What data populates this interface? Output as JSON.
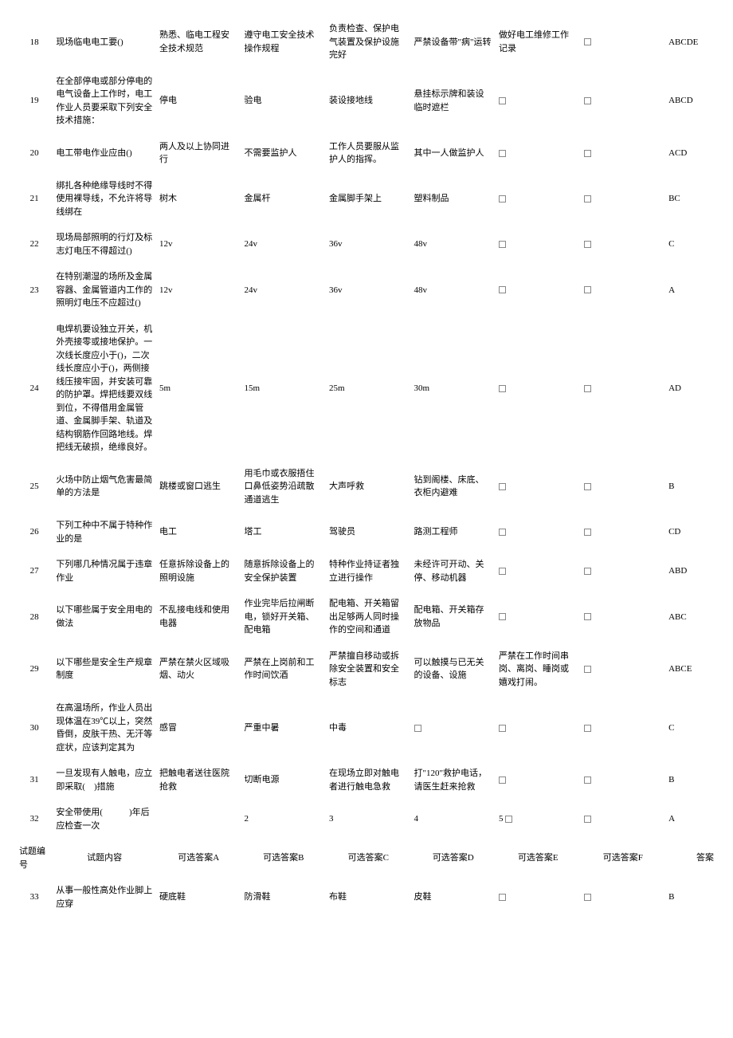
{
  "header": {
    "num": "试题编号",
    "q": "试题内容",
    "a": "可选答案A",
    "b": "可选答案B",
    "c": "可选答案C",
    "d": "可选答案D",
    "e": "可选答案E",
    "f": "可选答案F",
    "ans": "答案"
  },
  "rows": [
    {
      "n": "18",
      "q": "现场临电电工要()",
      "a": "熟悉、临电工程安全技术规范",
      "b": "遵守电工安全技术操作规程",
      "c": "负责检查、保护电气装置及保护设施完好",
      "d": "严禁设备带\"病\"运转",
      "e": "做好电工维修工作记录",
      "f": "",
      "ans": "ABCDE",
      "fbox": true
    },
    {
      "n": "19",
      "q": "在全部停电或部分停电的电气设备上工作时，电工作业人员要采取下列安全技术措施：",
      "a": "停电",
      "b": "验电",
      "c": "装设接地线",
      "d": "悬挂标示牌和装设临时遮栏",
      "e": "",
      "f": "",
      "ans": "ABCD",
      "ebox": true,
      "fbox": true
    },
    {
      "n": "20",
      "q": "电工带电作业应由()",
      "a": "两人及以上协同进行",
      "b": "不需要监护人",
      "c": "工作人员要服从监护人的指挥。",
      "d": "其中一人做监护人",
      "e": "",
      "f": "",
      "ans": "ACD",
      "ebox": true,
      "fbox": true
    },
    {
      "n": "21",
      "q": "绑扎各种绝缘导线时不得使用裸导线，不允许将导线绑在",
      "a": "树木",
      "b": "金属杆",
      "c": "金属脚手架上",
      "d": "塑料制品",
      "e": "",
      "f": "",
      "ans": "BC",
      "ebox": true,
      "fbox": true
    },
    {
      "n": "22",
      "q": "现场局部照明的行灯及标志灯电压不得超过()",
      "a": "12v",
      "b": "24v",
      "c": "36v",
      "d": "48v",
      "e": "",
      "f": "",
      "ans": "C",
      "ebox": true,
      "fbox": true
    },
    {
      "n": "23",
      "q": "在特别潮湿的场所及金属容器、金属管道内工作的照明灯电压不应超过()",
      "a": "12v",
      "b": "24v",
      "c": "36v",
      "d": "48v",
      "e": "",
      "f": "",
      "ans": "A",
      "ebox": true,
      "fbox": true
    },
    {
      "n": "24",
      "q": "电焊机要设独立开关，机外壳接零或接地保护。一次线长度应小于()，二次线长度应小于()，两侧接线压接牢固，并安装可靠的防护罩。焊把线要双线到位，不得借用金属管道、金属脚手架、轨道及结构钢筋作回路地线。焊把线无破损，绝缘良好。",
      "a": "5m",
      "b": "15m",
      "c": "25m",
      "d": "30m",
      "e": "",
      "f": "",
      "ans": "AD",
      "ebox": true,
      "fbox": true
    },
    {
      "n": "25",
      "q": "火场中防止烟气危害最简单的方法是",
      "a": "跳楼或窗口逃生",
      "b": "用毛巾或衣服捂住口鼻低姿势沿疏散通道逃生",
      "c": "大声呼救",
      "d": "钻到阁楼、床底、衣柜内避难",
      "e": "",
      "f": "",
      "ans": "B",
      "ebox": true,
      "fbox": true
    },
    {
      "n": "26",
      "q": "下列工种中不属于特种作业的是",
      "a": "电工",
      "b": "塔工",
      "c": "驾驶员",
      "d": "路测工程师",
      "e": "",
      "f": "",
      "ans": "CD",
      "ebox": true,
      "fbox": true
    },
    {
      "n": "27",
      "q": "下列哪几种情况属于违章作业",
      "a": "任意拆除设备上的照明设施",
      "b": "随意拆除设备上的安全保护装置",
      "c": "特种作业持证者独立进行操作",
      "d": "未经许可开动、关停、移动机器",
      "e": "",
      "f": "",
      "ans": "ABD",
      "ebox": true,
      "fbox": true
    },
    {
      "n": "28",
      "q": "以下哪些属于安全用电的做法",
      "a": "不乱接电线和使用电器",
      "b": "作业完毕后拉闸断电，锁好开关箱、配电箱",
      "c": "配电箱、开关箱留出足够两人同时操作的空间和通道",
      "d": "配电箱、开关箱存放物品",
      "e": "",
      "f": "",
      "ans": "ABC",
      "ebox": true,
      "fbox": true
    },
    {
      "n": "29",
      "q": "以下哪些是安全生产规章制度",
      "a": "严禁在禁火区域吸烟、动火",
      "b": "严禁在上岗前和工作时间饮酒",
      "c": "严禁擅自移动或拆除安全装置和安全标志",
      "d": "可以触摸与已无关的设备、设施",
      "e": "严禁在工作时间串岗、离岗、睡岗或嬉戏打闹。",
      "f": "",
      "ans": "ABCE",
      "fbox": true
    },
    {
      "n": "30",
      "q": "在高温场所，作业人员出现体温在39℃以上，突然昏倒，皮肤干热、无汗等症状，应该判定其为",
      "a": "感冒",
      "b": "严重中暑",
      "c": "中毒",
      "d": "",
      "e": "",
      "f": "",
      "ans": "C",
      "dbox": true,
      "ebox": true,
      "fbox": true
    },
    {
      "n": "31",
      "q": "一旦发现有人触电，应立即采取(　)措施",
      "a": "把触电者送往医院抢救",
      "b": "切断电源",
      "c": "在现场立即对触电者进行触电急救",
      "d": "打\"120\"救护电话，请医生赶来抢救",
      "e": "",
      "f": "",
      "ans": "B",
      "ebox": true,
      "fbox": true
    },
    {
      "n": "32",
      "q": "安全带使用(　　　)年后应检查一次",
      "a": "",
      "b": "2",
      "c": "3",
      "d": "4",
      "e": "5",
      "f": "",
      "ans": "A",
      "ebox2": true,
      "fbox": true
    }
  ],
  "rows2": [
    {
      "n": "33",
      "q": "从事一般性高处作业脚上应穿",
      "a": "硬底鞋",
      "b": "防滑鞋",
      "c": "布鞋",
      "d": "皮鞋",
      "e": "",
      "f": "",
      "ans": "B",
      "ebox": true,
      "fbox": true
    }
  ]
}
